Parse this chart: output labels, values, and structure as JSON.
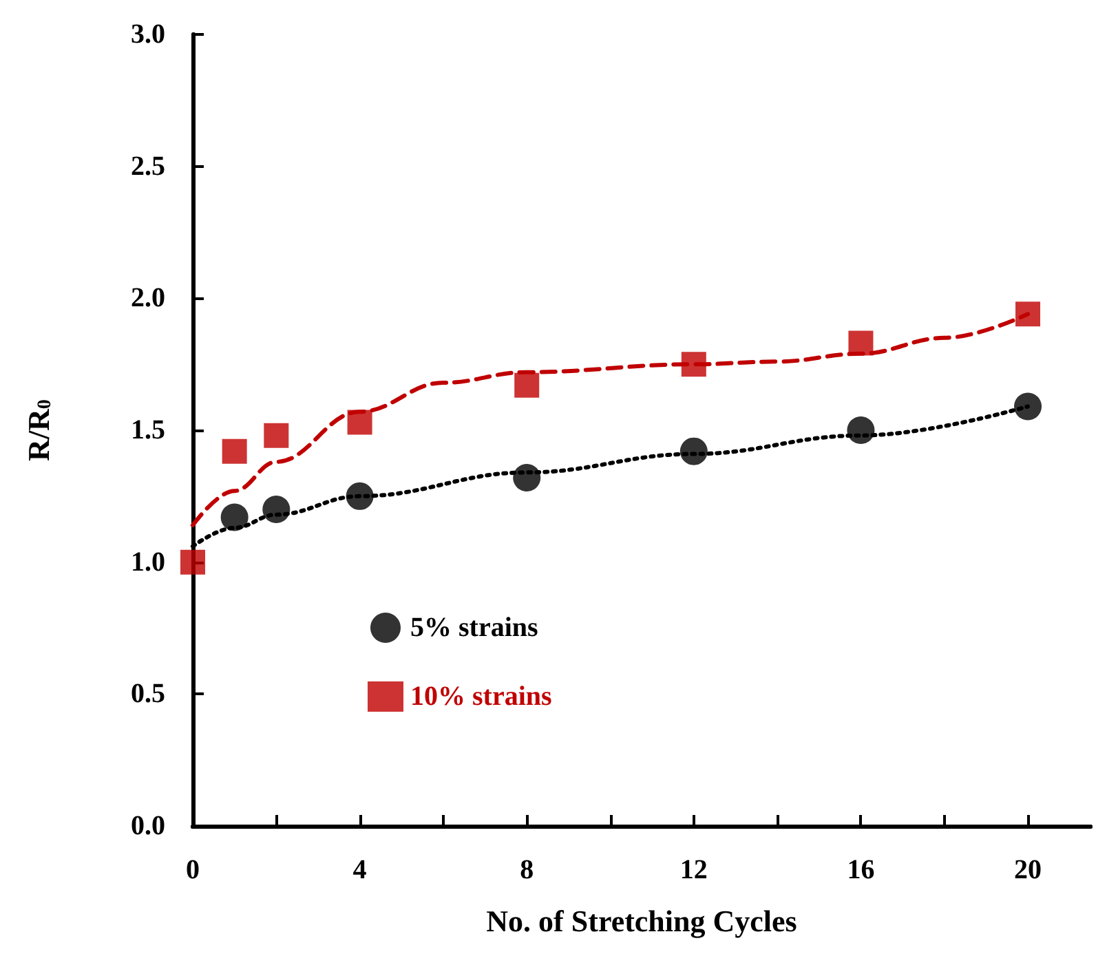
{
  "chart_data": {
    "type": "scatter",
    "xlabel": "No. of Stretching Cycles",
    "ylabel": "R/R$_{0}$",
    "x": [
      0,
      1,
      2,
      4,
      8,
      12,
      16,
      20
    ],
    "series": [
      {
        "name": "5% strains",
        "color": "#000000",
        "marker": "circle",
        "values": [
          null,
          1.17,
          1.2,
          1.25,
          1.32,
          1.42,
          1.5,
          1.59
        ]
      },
      {
        "name": "10% strains",
        "color": "#c00000",
        "marker": "square",
        "values": [
          1.0,
          1.42,
          1.48,
          1.53,
          1.67,
          1.75,
          1.83,
          1.94
        ]
      },
      {
        "type": "line",
        "color": "#000000",
        "line_style": "dotted",
        "marker": "none",
        "x": [
          0,
          1,
          2,
          4,
          8,
          12,
          16,
          20
        ],
        "values": [
          1.06,
          1.13,
          1.18,
          1.25,
          1.34,
          1.41,
          1.48,
          1.59
        ]
      },
      {
        "type": "line",
        "color": "#c00000",
        "line_style": "dashed",
        "marker": "none",
        "x": [
          0,
          1,
          2,
          4,
          6,
          8,
          12,
          14,
          16,
          18,
          20
        ],
        "values": [
          1.14,
          1.27,
          1.38,
          1.57,
          1.68,
          1.72,
          1.75,
          1.76,
          1.79,
          1.85,
          1.94
        ]
      }
    ],
    "xlim": [
      0,
      21.5
    ],
    "xticks": [
      0,
      {
        "value": 2,
        "label": null
      },
      4,
      {
        "value": 6,
        "label": null
      },
      8,
      {
        "value": 10,
        "label": null
      },
      12,
      {
        "value": 14,
        "label": null
      },
      16,
      {
        "value": 18,
        "label": null
      },
      20
    ],
    "ylim": [
      0,
      3
    ],
    "yticks": [
      {
        "value": 0,
        "label": "0.0"
      },
      0.5,
      {
        "value": 1,
        "label": "1.0"
      },
      1.5,
      {
        "value": 2,
        "label": "2.0"
      },
      2.5,
      {
        "value": 3,
        "label": "3.0"
      }
    ],
    "grid": false,
    "legend": "bottom left"
  }
}
